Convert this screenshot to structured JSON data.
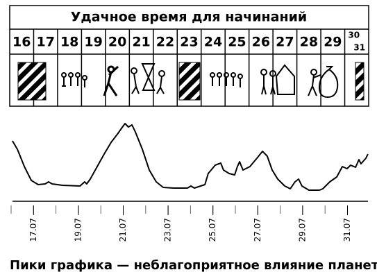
{
  "header": {
    "title": "Удачное время для начинаний",
    "days": [
      "16",
      "17",
      "18",
      "19",
      "20",
      "21",
      "22",
      "23",
      "24",
      "25",
      "26",
      "27",
      "28",
      "29",
      "30",
      "31"
    ]
  },
  "chart_data": {
    "type": "line",
    "caption": "Пики графика — неблагоприятное влияние планет",
    "x": [
      16.06,
      16.28,
      16.59,
      16.9,
      17.21,
      17.52,
      17.67,
      17.83,
      18.29,
      19.07,
      19.28,
      19.37,
      19.53,
      19.84,
      20.15,
      20.46,
      20.77,
      20.92,
      21.08,
      21.23,
      21.39,
      21.54,
      21.85,
      22.16,
      22.47,
      22.78,
      23.24,
      23.86,
      24.02,
      24.17,
      24.64,
      24.79,
      25.1,
      25.35,
      25.47,
      25.72,
      25.97,
      26.09,
      26.19,
      26.34,
      26.65,
      26.96,
      27.21,
      27.42,
      27.64,
      27.89,
      28.2,
      28.45,
      28.66,
      28.82,
      28.97,
      29.28,
      29.75,
      29.9,
      30.21,
      30.52,
      30.77,
      30.98,
      31.14,
      31.36,
      31.51,
      31.6,
      31.82,
      31.91
    ],
    "values": [
      72.5,
      62.5,
      41.7,
      25,
      20,
      20.8,
      23.3,
      20.8,
      19.2,
      18.3,
      23.3,
      20.8,
      26.7,
      41.7,
      56.7,
      70.8,
      81.7,
      87.5,
      93.3,
      89.2,
      91.7,
      83.3,
      62.5,
      37.5,
      23.3,
      16.7,
      15.8,
      15.8,
      18.3,
      15.8,
      20,
      33.3,
      43.3,
      45.8,
      37.5,
      33.3,
      31.7,
      41.7,
      47.5,
      37.5,
      41.7,
      51.7,
      60,
      54.2,
      37.5,
      26.7,
      18.3,
      15,
      23.3,
      26.7,
      18.3,
      13.3,
      13.3,
      15,
      23.3,
      29.2,
      41.7,
      39.2,
      43.3,
      40.8,
      50,
      45,
      51.7,
      56.7
    ],
    "color": "#000000",
    "xlim": [
      16,
      32
    ],
    "ylim": [
      0,
      100
    ],
    "xticks": [
      {
        "value": 17,
        "label": "17.07"
      },
      {
        "value": 19,
        "label": "19.07"
      },
      {
        "value": 21,
        "label": "21.07"
      },
      {
        "value": 23,
        "label": "23.07"
      },
      {
        "value": 25,
        "label": "25.07"
      },
      {
        "value": 27,
        "label": "27.07"
      },
      {
        "value": 29,
        "label": "29.07"
      },
      {
        "value": 31,
        "label": "31.07"
      }
    ],
    "xminorticks": [
      16,
      17,
      18,
      19,
      20,
      21,
      22,
      23,
      24,
      25,
      26,
      27,
      28,
      29,
      30,
      31
    ]
  }
}
